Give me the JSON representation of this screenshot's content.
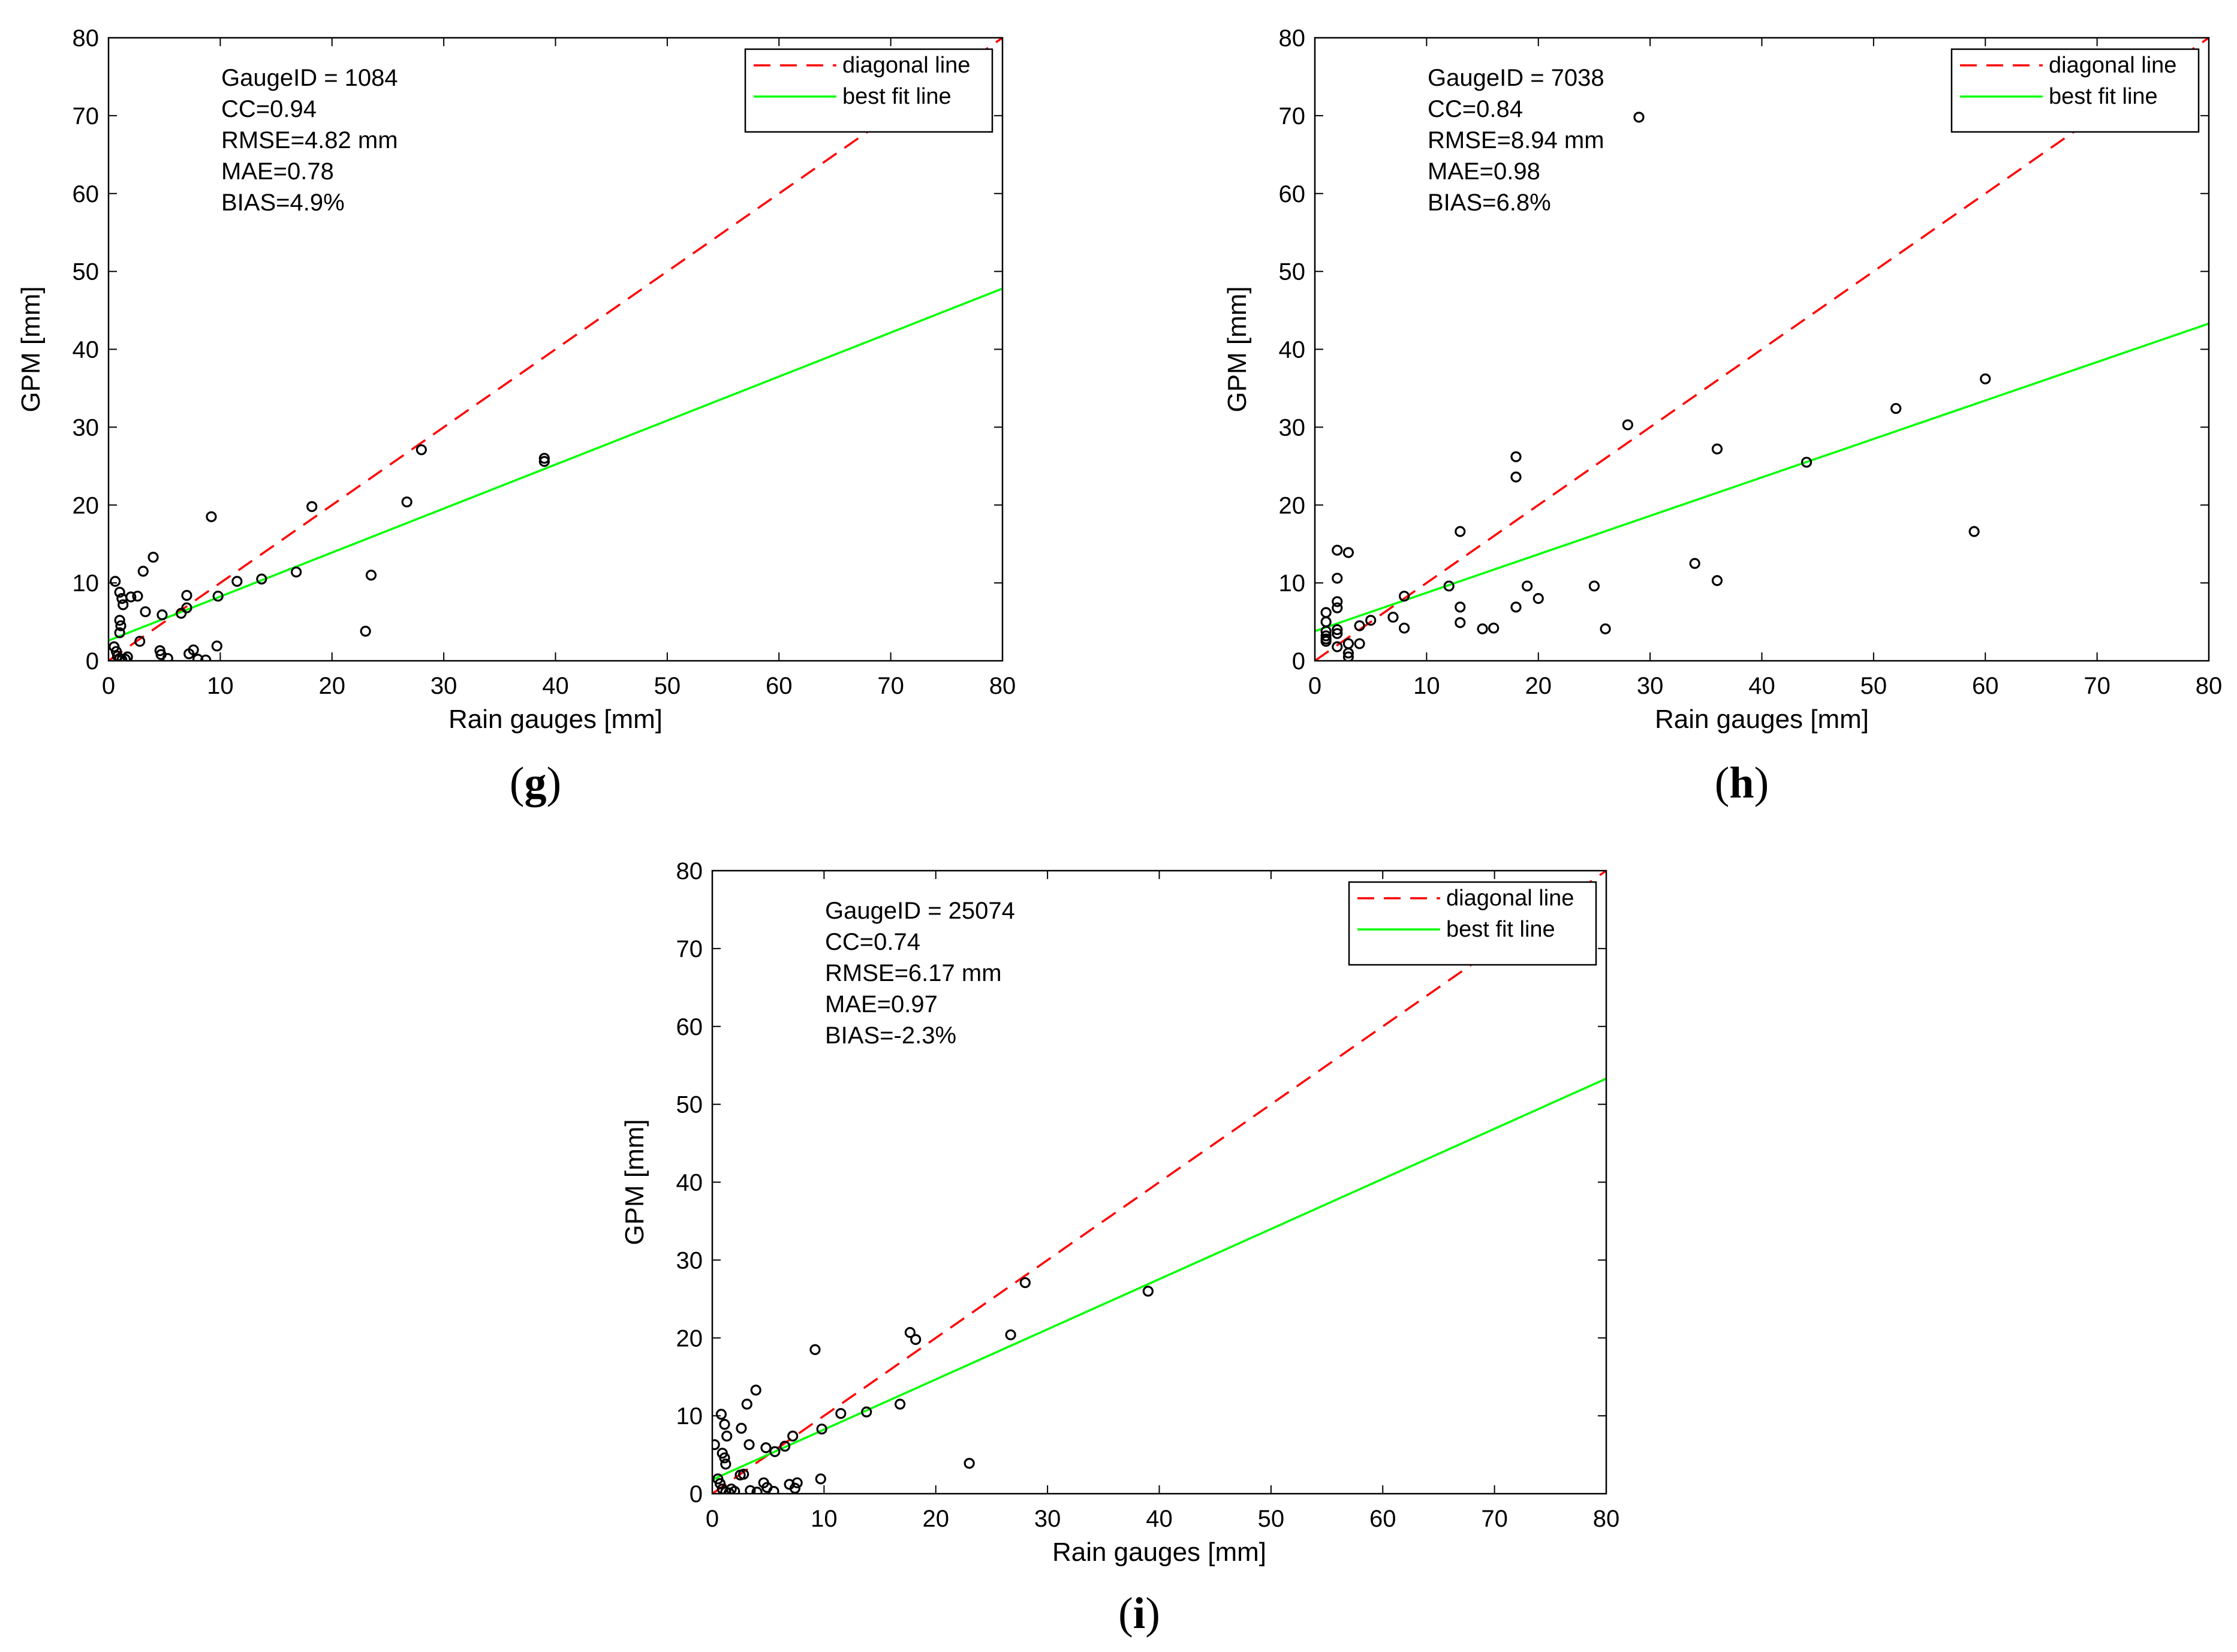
{
  "figure": {
    "panels": [
      "g",
      "h",
      "i"
    ]
  },
  "chart_data": [
    {
      "id": "g",
      "type": "scatter",
      "panel_label": "g",
      "xlabel": "Rain gauges [mm]",
      "ylabel": "GPM [mm]",
      "xlim": [
        0,
        80
      ],
      "ylim": [
        0,
        80
      ],
      "xticks": [
        0,
        10,
        20,
        30,
        40,
        50,
        60,
        70,
        80
      ],
      "yticks": [
        0,
        10,
        20,
        30,
        40,
        50,
        60,
        70,
        80
      ],
      "stats": [
        "GaugeID = 1084",
        "CC=0.94",
        "RMSE=4.82 mm",
        "MAE=0.78",
        "BIAS=4.9%"
      ],
      "legend": {
        "position": "top-right",
        "entries": [
          "diagonal line",
          "best fit line"
        ]
      },
      "series": [
        {
          "name": "diagonal line",
          "kind": "line",
          "style": "dashed",
          "color": "#ff0000",
          "x": [
            0,
            80
          ],
          "y": [
            0,
            80
          ]
        },
        {
          "name": "best fit line",
          "kind": "line",
          "style": "solid",
          "color": "#00ff00",
          "x": [
            0,
            80
          ],
          "y": [
            2.6,
            47.8
          ]
        },
        {
          "name": "observations",
          "kind": "scatter",
          "color": "#000000",
          "points": [
            [
              0.6,
              10.2
            ],
            [
              1,
              8.8
            ],
            [
              1.2,
              8
            ],
            [
              1.3,
              7.2
            ],
            [
              1,
              5.2
            ],
            [
              1.1,
              4.5
            ],
            [
              1,
              3.6
            ],
            [
              0.5,
              1.8
            ],
            [
              0.7,
              1.2
            ],
            [
              0.8,
              0.6
            ],
            [
              1,
              0.3
            ],
            [
              1.2,
              0.1
            ],
            [
              1.5,
              0.2
            ],
            [
              1.7,
              0.5
            ],
            [
              2,
              8.2
            ],
            [
              2.6,
              8.3
            ],
            [
              2.8,
              2.5
            ],
            [
              3.1,
              11.5
            ],
            [
              3.3,
              6.3
            ],
            [
              4,
              13.3
            ],
            [
              4.6,
              1.3
            ],
            [
              4.7,
              0.8
            ],
            [
              4.8,
              5.9
            ],
            [
              5.3,
              0.3
            ],
            [
              6.5,
              6.1
            ],
            [
              7,
              8.4
            ],
            [
              7,
              6.8
            ],
            [
              7.2,
              0.9
            ],
            [
              7.6,
              1.4
            ],
            [
              8,
              0.2
            ],
            [
              8.7,
              0.1
            ],
            [
              9.2,
              18.5
            ],
            [
              9.7,
              1.9
            ],
            [
              9.8,
              8.3
            ],
            [
              11.5,
              10.2
            ],
            [
              13.7,
              10.5
            ],
            [
              16.8,
              11.4
            ],
            [
              18.2,
              19.8
            ],
            [
              23,
              3.8
            ],
            [
              23.5,
              11
            ],
            [
              26.7,
              20.4
            ],
            [
              28,
              27.1
            ],
            [
              39,
              26
            ],
            [
              39,
              25.6
            ]
          ]
        }
      ]
    },
    {
      "id": "h",
      "type": "scatter",
      "panel_label": "h",
      "xlabel": "Rain gauges [mm]",
      "ylabel": "GPM [mm]",
      "xlim": [
        0,
        80
      ],
      "ylim": [
        0,
        80
      ],
      "xticks": [
        0,
        10,
        20,
        30,
        40,
        50,
        60,
        70,
        80
      ],
      "yticks": [
        0,
        10,
        20,
        30,
        40,
        50,
        60,
        70,
        80
      ],
      "stats": [
        "GaugeID = 7038",
        "CC=0.84",
        "RMSE=8.94 mm",
        "MAE=0.98",
        "BIAS=6.8%"
      ],
      "legend": {
        "position": "top-right",
        "entries": [
          "diagonal line",
          "best fit line"
        ]
      },
      "series": [
        {
          "name": "diagonal line",
          "kind": "line",
          "style": "dashed",
          "color": "#ff0000",
          "x": [
            0,
            80
          ],
          "y": [
            0,
            80
          ]
        },
        {
          "name": "best fit line",
          "kind": "line",
          "style": "solid",
          "color": "#00ff00",
          "x": [
            0,
            80
          ],
          "y": [
            3.8,
            43.3
          ]
        },
        {
          "name": "observations",
          "kind": "scatter",
          "color": "#000000",
          "points": [
            [
              1,
              6.2
            ],
            [
              1,
              5
            ],
            [
              1,
              3.8
            ],
            [
              1,
              3.2
            ],
            [
              1,
              2.8
            ],
            [
              1,
              2.5
            ],
            [
              2,
              14.2
            ],
            [
              2,
              10.6
            ],
            [
              2,
              7.6
            ],
            [
              2,
              6.8
            ],
            [
              2,
              4
            ],
            [
              2,
              3.5
            ],
            [
              2,
              1.8
            ],
            [
              3,
              13.9
            ],
            [
              3,
              2.2
            ],
            [
              3,
              1
            ],
            [
              3,
              0.5
            ],
            [
              4,
              4.5
            ],
            [
              4,
              2.2
            ],
            [
              5,
              5.2
            ],
            [
              7,
              5.6
            ],
            [
              8,
              8.3
            ],
            [
              8,
              4.2
            ],
            [
              12,
              9.6
            ],
            [
              13,
              16.6
            ],
            [
              13,
              6.9
            ],
            [
              13,
              4.9
            ],
            [
              15,
              4.1
            ],
            [
              16,
              4.2
            ],
            [
              18,
              26.2
            ],
            [
              18,
              23.6
            ],
            [
              18,
              6.9
            ],
            [
              19,
              9.6
            ],
            [
              20,
              8
            ],
            [
              25,
              9.6
            ],
            [
              26,
              4.1
            ],
            [
              28,
              30.3
            ],
            [
              29,
              69.8
            ],
            [
              34,
              12.5
            ],
            [
              36,
              27.2
            ],
            [
              36,
              10.3
            ],
            [
              44,
              25.5
            ],
            [
              52,
              32.4
            ],
            [
              59,
              16.6
            ],
            [
              60,
              36.2
            ]
          ]
        }
      ]
    },
    {
      "id": "i",
      "type": "scatter",
      "panel_label": "i",
      "xlabel": "Rain gauges [mm]",
      "ylabel": "GPM [mm]",
      "xlim": [
        0,
        80
      ],
      "ylim": [
        0,
        80
      ],
      "xticks": [
        0,
        10,
        20,
        30,
        40,
        50,
        60,
        70,
        80
      ],
      "yticks": [
        0,
        10,
        20,
        30,
        40,
        50,
        60,
        70,
        80
      ],
      "stats": [
        "GaugeID = 25074",
        "CC=0.74",
        "RMSE=6.17 mm",
        "MAE=0.97",
        "BIAS=-2.3%"
      ],
      "legend": {
        "position": "top-right",
        "entries": [
          "diagonal line",
          "best fit line"
        ]
      },
      "series": [
        {
          "name": "diagonal line",
          "kind": "line",
          "style": "dashed",
          "color": "#ff0000",
          "x": [
            0,
            80
          ],
          "y": [
            0,
            80
          ]
        },
        {
          "name": "best fit line",
          "kind": "line",
          "style": "solid",
          "color": "#00ff00",
          "x": [
            0,
            80
          ],
          "y": [
            1.8,
            53.3
          ]
        },
        {
          "name": "observations",
          "kind": "scatter",
          "color": "#000000",
          "points": [
            [
              0.2,
              6.3
            ],
            [
              0.8,
              10.2
            ],
            [
              1.1,
              8.9
            ],
            [
              1.3,
              7.4
            ],
            [
              0.9,
              5.2
            ],
            [
              1.1,
              4.6
            ],
            [
              1.2,
              3.8
            ],
            [
              0.5,
              1.9
            ],
            [
              0.7,
              1.3
            ],
            [
              0.9,
              0.6
            ],
            [
              1.2,
              0.2
            ],
            [
              1.5,
              0.1
            ],
            [
              1.7,
              0.6
            ],
            [
              2,
              0.3
            ],
            [
              2.6,
              8.4
            ],
            [
              2.5,
              2.4
            ],
            [
              2.8,
              2.5
            ],
            [
              3.1,
              11.5
            ],
            [
              3.3,
              6.3
            ],
            [
              3.4,
              0.4
            ],
            [
              3.9,
              13.3
            ],
            [
              4,
              0.2
            ],
            [
              4.6,
              1.4
            ],
            [
              4.8,
              5.9
            ],
            [
              4.9,
              0.8
            ],
            [
              5.5,
              0.3
            ],
            [
              5.6,
              5.4
            ],
            [
              6.5,
              6.1
            ],
            [
              6.9,
              1.2
            ],
            [
              7.2,
              7.4
            ],
            [
              7.4,
              0.7
            ],
            [
              7.6,
              1.4
            ],
            [
              9.2,
              18.5
            ],
            [
              9.7,
              1.9
            ],
            [
              9.8,
              8.3
            ],
            [
              11.5,
              10.3
            ],
            [
              13.8,
              10.5
            ],
            [
              16.8,
              11.5
            ],
            [
              17.7,
              20.7
            ],
            [
              18.2,
              19.8
            ],
            [
              23,
              3.9
            ],
            [
              26.7,
              20.4
            ],
            [
              28,
              27.1
            ],
            [
              39,
              26
            ]
          ]
        }
      ]
    }
  ]
}
